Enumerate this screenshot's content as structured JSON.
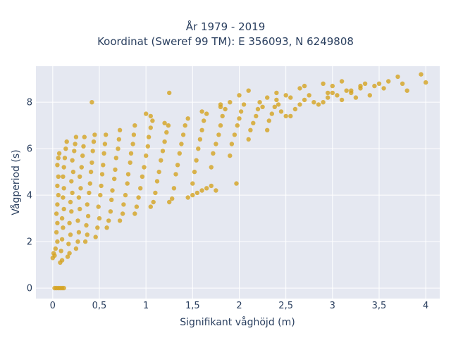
{
  "chart_data": {
    "type": "scatter",
    "title_line1": "År 1979 - 2019",
    "title_line2": "Koordinat (Sweref 99 TM): E 356093, N 6249808",
    "xlabel": "Signifikant våghöjd (m)",
    "ylabel": "Vågperiod (s)",
    "xlim": [
      -0.18,
      4.15
    ],
    "ylim": [
      -0.45,
      9.55
    ],
    "x_ticks": [
      {
        "value": 0,
        "label": "0"
      },
      {
        "value": 0.5,
        "label": "0,5"
      },
      {
        "value": 1,
        "label": "1"
      },
      {
        "value": 1.5,
        "label": "1,5"
      },
      {
        "value": 2,
        "label": "2"
      },
      {
        "value": 2.5,
        "label": "2,5"
      },
      {
        "value": 3,
        "label": "3"
      },
      {
        "value": 3.5,
        "label": "3,5"
      },
      {
        "value": 4,
        "label": "4"
      }
    ],
    "y_ticks": [
      {
        "value": 0,
        "label": "0"
      },
      {
        "value": 2,
        "label": "2"
      },
      {
        "value": 4,
        "label": "4"
      },
      {
        "value": 6,
        "label": "6"
      },
      {
        "value": 8,
        "label": "8"
      }
    ],
    "grid": true,
    "plot_bgcolor": "#e5e8f1",
    "marker_color": "#d4a321",
    "series": [
      {
        "points": [
          [
            0.02,
            0.0
          ],
          [
            0.04,
            0.0
          ],
          [
            0.06,
            0.0
          ],
          [
            0.08,
            0.0
          ],
          [
            0.1,
            0.0
          ],
          [
            0.12,
            0.0
          ],
          [
            0.0,
            1.3
          ],
          [
            0.01,
            1.5
          ],
          [
            0.02,
            1.4
          ],
          [
            0.03,
            1.7
          ],
          [
            0.05,
            2.0
          ],
          [
            0.04,
            2.4
          ],
          [
            0.05,
            2.8
          ],
          [
            0.04,
            3.2
          ],
          [
            0.05,
            3.6
          ],
          [
            0.06,
            4.0
          ],
          [
            0.05,
            4.4
          ],
          [
            0.06,
            4.8
          ],
          [
            0.05,
            5.3
          ],
          [
            0.06,
            5.6
          ],
          [
            0.07,
            5.8
          ],
          [
            0.08,
            1.1
          ],
          [
            0.1,
            1.2
          ],
          [
            0.09,
            1.6
          ],
          [
            0.1,
            2.1
          ],
          [
            0.11,
            2.6
          ],
          [
            0.1,
            3.0
          ],
          [
            0.12,
            3.4
          ],
          [
            0.11,
            3.9
          ],
          [
            0.12,
            4.3
          ],
          [
            0.11,
            4.8
          ],
          [
            0.12,
            5.2
          ],
          [
            0.13,
            5.6
          ],
          [
            0.14,
            6.0
          ],
          [
            0.15,
            6.3
          ],
          [
            0.16,
            1.35
          ],
          [
            0.18,
            1.5
          ],
          [
            0.17,
            1.9
          ],
          [
            0.19,
            2.3
          ],
          [
            0.18,
            2.8
          ],
          [
            0.2,
            3.3
          ],
          [
            0.19,
            3.7
          ],
          [
            0.21,
            4.1
          ],
          [
            0.2,
            4.6
          ],
          [
            0.22,
            5.0
          ],
          [
            0.21,
            5.5
          ],
          [
            0.23,
            5.9
          ],
          [
            0.24,
            6.2
          ],
          [
            0.25,
            6.5
          ],
          [
            0.25,
            1.7
          ],
          [
            0.27,
            2.0
          ],
          [
            0.28,
            2.4
          ],
          [
            0.27,
            2.9
          ],
          [
            0.29,
            3.4
          ],
          [
            0.28,
            3.9
          ],
          [
            0.3,
            4.3
          ],
          [
            0.29,
            4.8
          ],
          [
            0.31,
            5.2
          ],
          [
            0.32,
            5.7
          ],
          [
            0.33,
            6.1
          ],
          [
            0.34,
            6.5
          ],
          [
            0.35,
            2.0
          ],
          [
            0.37,
            2.3
          ],
          [
            0.36,
            2.7
          ],
          [
            0.38,
            3.1
          ],
          [
            0.37,
            3.6
          ],
          [
            0.39,
            4.1
          ],
          [
            0.4,
            4.5
          ],
          [
            0.41,
            5.0
          ],
          [
            0.42,
            5.4
          ],
          [
            0.43,
            5.9
          ],
          [
            0.44,
            6.3
          ],
          [
            0.45,
            6.6
          ],
          [
            0.42,
            8.0
          ],
          [
            0.46,
            2.2
          ],
          [
            0.48,
            2.6
          ],
          [
            0.5,
            3.0
          ],
          [
            0.49,
            3.5
          ],
          [
            0.51,
            4.0
          ],
          [
            0.52,
            4.4
          ],
          [
            0.53,
            4.9
          ],
          [
            0.54,
            5.3
          ],
          [
            0.55,
            5.8
          ],
          [
            0.56,
            6.2
          ],
          [
            0.57,
            6.6
          ],
          [
            0.58,
            2.6
          ],
          [
            0.6,
            2.9
          ],
          [
            0.62,
            3.3
          ],
          [
            0.63,
            3.8
          ],
          [
            0.64,
            4.2
          ],
          [
            0.66,
            4.7
          ],
          [
            0.67,
            5.1
          ],
          [
            0.68,
            5.6
          ],
          [
            0.7,
            6.0
          ],
          [
            0.71,
            6.4
          ],
          [
            0.72,
            6.8
          ],
          [
            0.72,
            2.9
          ],
          [
            0.75,
            3.2
          ],
          [
            0.76,
            3.6
          ],
          [
            0.78,
            4.0
          ],
          [
            0.8,
            4.5
          ],
          [
            0.81,
            4.9
          ],
          [
            0.83,
            5.4
          ],
          [
            0.84,
            5.8
          ],
          [
            0.86,
            6.2
          ],
          [
            0.87,
            6.6
          ],
          [
            0.88,
            7.0
          ],
          [
            0.88,
            3.2
          ],
          [
            0.9,
            3.5
          ],
          [
            0.92,
            3.9
          ],
          [
            0.94,
            4.3
          ],
          [
            0.96,
            4.8
          ],
          [
            0.98,
            5.2
          ],
          [
            1.0,
            5.7
          ],
          [
            1.02,
            6.1
          ],
          [
            1.03,
            6.5
          ],
          [
            1.05,
            6.9
          ],
          [
            1.07,
            7.2
          ],
          [
            1.05,
            7.4
          ],
          [
            1.0,
            7.5
          ],
          [
            1.05,
            3.5
          ],
          [
            1.08,
            3.7
          ],
          [
            1.1,
            4.1
          ],
          [
            1.12,
            4.6
          ],
          [
            1.14,
            5.0
          ],
          [
            1.16,
            5.5
          ],
          [
            1.18,
            5.9
          ],
          [
            1.2,
            6.3
          ],
          [
            1.22,
            6.7
          ],
          [
            1.24,
            7.0
          ],
          [
            1.25,
            8.4
          ],
          [
            1.2,
            7.1
          ],
          [
            1.25,
            3.7
          ],
          [
            1.28,
            3.85
          ],
          [
            1.3,
            4.3
          ],
          [
            1.32,
            4.9
          ],
          [
            1.34,
            5.3
          ],
          [
            1.36,
            5.8
          ],
          [
            1.38,
            6.2
          ],
          [
            1.4,
            6.6
          ],
          [
            1.42,
            7.0
          ],
          [
            1.45,
            7.3
          ],
          [
            1.45,
            3.9
          ],
          [
            1.5,
            4.0
          ],
          [
            1.55,
            4.1
          ],
          [
            1.6,
            4.2
          ],
          [
            1.65,
            4.3
          ],
          [
            1.7,
            4.4
          ],
          [
            1.75,
            4.2
          ],
          [
            1.5,
            4.5
          ],
          [
            1.52,
            5.0
          ],
          [
            1.54,
            5.5
          ],
          [
            1.56,
            6.0
          ],
          [
            1.58,
            6.4
          ],
          [
            1.6,
            6.8
          ],
          [
            1.62,
            7.2
          ],
          [
            1.65,
            7.5
          ],
          [
            1.6,
            7.6
          ],
          [
            1.7,
            5.2
          ],
          [
            1.72,
            5.8
          ],
          [
            1.75,
            6.2
          ],
          [
            1.78,
            6.6
          ],
          [
            1.8,
            7.0
          ],
          [
            1.82,
            7.4
          ],
          [
            1.85,
            7.7
          ],
          [
            1.8,
            7.8
          ],
          [
            1.9,
            5.7
          ],
          [
            1.92,
            6.2
          ],
          [
            1.95,
            6.6
          ],
          [
            1.98,
            7.0
          ],
          [
            2.0,
            7.3
          ],
          [
            2.02,
            7.6
          ],
          [
            2.05,
            7.9
          ],
          [
            1.97,
            4.5
          ],
          [
            2.1,
            6.4
          ],
          [
            2.12,
            6.8
          ],
          [
            2.15,
            7.1
          ],
          [
            2.18,
            7.4
          ],
          [
            2.2,
            7.7
          ],
          [
            2.22,
            8.0
          ],
          [
            2.25,
            7.8
          ],
          [
            2.3,
            6.8
          ],
          [
            2.32,
            7.2
          ],
          [
            2.35,
            7.5
          ],
          [
            2.38,
            7.8
          ],
          [
            2.4,
            8.1
          ],
          [
            2.42,
            7.9
          ],
          [
            2.45,
            7.6
          ],
          [
            2.5,
            7.4
          ],
          [
            2.55,
            7.4
          ],
          [
            2.6,
            7.7
          ],
          [
            2.65,
            7.9
          ],
          [
            2.7,
            8.1
          ],
          [
            2.75,
            8.3
          ],
          [
            2.8,
            8.0
          ],
          [
            2.85,
            7.9
          ],
          [
            2.55,
            8.2
          ],
          [
            2.65,
            8.6
          ],
          [
            2.7,
            8.7
          ],
          [
            2.5,
            8.3
          ],
          [
            2.9,
            8.0
          ],
          [
            2.95,
            8.2
          ],
          [
            3.0,
            8.4
          ],
          [
            3.05,
            8.3
          ],
          [
            3.1,
            8.1
          ],
          [
            3.15,
            8.5
          ],
          [
            3.2,
            8.4
          ],
          [
            3.25,
            8.2
          ],
          [
            3.3,
            8.6
          ],
          [
            3.35,
            8.8
          ],
          [
            3.4,
            8.3
          ],
          [
            3.45,
            8.7
          ],
          [
            3.5,
            8.8
          ],
          [
            3.55,
            8.6
          ],
          [
            2.9,
            8.8
          ],
          [
            2.95,
            8.4
          ],
          [
            3.0,
            8.7
          ],
          [
            3.1,
            8.9
          ],
          [
            3.2,
            8.5
          ],
          [
            3.3,
            8.7
          ],
          [
            3.6,
            8.9
          ],
          [
            3.7,
            9.1
          ],
          [
            3.75,
            8.8
          ],
          [
            3.8,
            8.5
          ],
          [
            3.95,
            9.2
          ],
          [
            4.0,
            8.85
          ],
          [
            2.0,
            8.3
          ],
          [
            2.1,
            8.5
          ],
          [
            2.3,
            8.2
          ],
          [
            2.4,
            8.4
          ],
          [
            1.9,
            8.0
          ],
          [
            1.8,
            7.9
          ]
        ]
      }
    ]
  }
}
